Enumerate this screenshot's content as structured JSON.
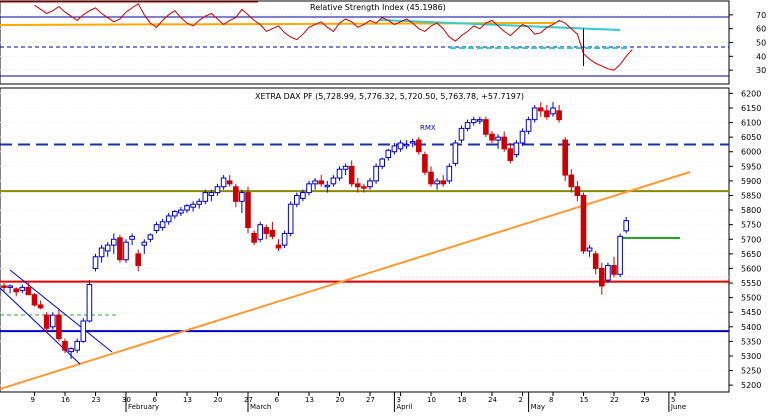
{
  "rsi_panel": {
    "title": "Relative Strength Index (45.1986)",
    "y_ticks": [
      30,
      40,
      50,
      60,
      70
    ],
    "y_range": [
      20,
      80
    ],
    "dashed_levels": [
      50
    ],
    "solid_levels": [
      70,
      30
    ],
    "line_color": "#cc0000",
    "series_days": [
      5,
      6,
      7,
      8,
      9,
      10,
      11,
      12,
      13,
      14,
      15,
      16,
      17,
      18,
      19,
      20,
      21,
      22,
      23,
      24,
      25,
      26,
      27,
      28,
      29,
      30,
      31,
      32,
      33,
      34,
      35,
      36,
      37,
      38,
      39,
      40,
      41,
      42,
      43,
      44,
      45,
      46,
      47,
      48,
      49,
      50,
      51,
      52,
      53,
      54,
      55,
      56,
      57,
      58,
      59,
      60,
      61,
      62,
      63,
      64,
      65,
      66,
      67,
      68,
      69,
      70,
      71,
      72,
      73,
      74,
      75,
      76,
      77,
      78,
      79,
      80,
      81,
      82,
      83,
      84,
      85,
      86,
      87,
      88,
      89,
      90,
      91,
      92,
      93,
      94,
      95,
      96,
      97,
      98,
      99,
      100,
      101,
      102,
      103
    ],
    "series_values": [
      77,
      74,
      71,
      73,
      76,
      72,
      69,
      66,
      70,
      73,
      75,
      71,
      68,
      65,
      67,
      72,
      75,
      78,
      70,
      64,
      61,
      66,
      70,
      73,
      68,
      64,
      62,
      66,
      69,
      71,
      67,
      63,
      66,
      68,
      74,
      70,
      66,
      63,
      58,
      60,
      62,
      57,
      54,
      52,
      56,
      61,
      63,
      65,
      61,
      58,
      64,
      67,
      65,
      61,
      63,
      66,
      64,
      68,
      66,
      63,
      65,
      67,
      64,
      60,
      58,
      62,
      64,
      60,
      54,
      51,
      55,
      58,
      62,
      60,
      64,
      66,
      62,
      58,
      55,
      59,
      63,
      61,
      56,
      57,
      61,
      63,
      66,
      64,
      60,
      56,
      42,
      38,
      35,
      33,
      31,
      30,
      34,
      40,
      45
    ]
  },
  "price_panel": {
    "title": "XETRA DAX PF (5,728.99, 5,776.32, 5,720.50, 5,763.78, +57.7197)",
    "annotation": "RMX",
    "y_ticks": [
      5200,
      5250,
      5300,
      5350,
      5400,
      5450,
      5500,
      5550,
      5600,
      5650,
      5700,
      5750,
      5800,
      5850,
      5900,
      5950,
      6000,
      6050,
      6100,
      6150,
      6200
    ],
    "y_range": [
      5180,
      6215
    ],
    "bull_color": "#0000cc",
    "bear_color": "#cc0000",
    "horizontal_lines": [
      {
        "value": 6025,
        "style": "dashed",
        "color": "#1a2fa8"
      },
      {
        "value": 5865,
        "style": "solid",
        "color": "#8a8a00"
      },
      {
        "value": 5555,
        "style": "solid",
        "color": "#dd0000"
      },
      {
        "value": 5385,
        "style": "solid",
        "color": "#0000cc"
      }
    ]
  },
  "x_axis": {
    "tick_labels": [
      "9",
      "16",
      "23",
      "30",
      "6",
      "13",
      "20",
      "27",
      "6",
      "13",
      "20",
      "27",
      "3",
      "10",
      "18",
      "24",
      "2",
      "8",
      "15",
      "22",
      "29",
      "5"
    ],
    "tick_days": [
      5,
      10,
      15,
      20,
      25,
      30,
      35,
      40,
      45,
      50,
      55,
      60,
      65,
      70,
      75,
      80,
      85,
      90,
      95,
      100,
      105,
      110
    ],
    "month_labels": [
      "February",
      "March",
      "April",
      "May",
      "June"
    ],
    "month_days": [
      20,
      40,
      64,
      86,
      109
    ]
  },
  "chart_data": [
    {
      "type": "line",
      "title": "Relative Strength Index (45.1986)",
      "series": [
        {
          "name": "Relative Strength Index",
          "x_day_index": "see rsi_panel.series_days",
          "values": "see rsi_panel.series_values"
        }
      ],
      "ylim": [
        20,
        80
      ],
      "reference_levels": [
        30,
        50,
        70
      ]
    },
    {
      "type": "candlestick",
      "title": "XETRA DAX PF (5,728.99, 5,776.32, 5,720.50, 5,763.78, +57.7197)",
      "last_bar": {
        "open": 5728.99,
        "high": 5776.32,
        "low": 5720.5,
        "close": 5763.78,
        "change": 57.7197
      },
      "ylim": [
        5180,
        6215
      ],
      "candles": [
        [
          5540,
          5550,
          5520,
          5535
        ],
        [
          5535,
          5545,
          5515,
          5540
        ],
        [
          5530,
          5535,
          5505,
          5520
        ],
        [
          5525,
          5545,
          5515,
          5535
        ],
        [
          5535,
          5550,
          5520,
          5510
        ],
        [
          5510,
          5515,
          5470,
          5475
        ],
        [
          5475,
          5490,
          5460,
          5465
        ],
        [
          5440,
          5450,
          5380,
          5395
        ],
        [
          5400,
          5450,
          5390,
          5440
        ],
        [
          5440,
          5460,
          5350,
          5360
        ],
        [
          5350,
          5360,
          5310,
          5320
        ],
        [
          5315,
          5330,
          5290,
          5325
        ],
        [
          5320,
          5360,
          5310,
          5350
        ],
        [
          5350,
          5430,
          5345,
          5420
        ],
        [
          5420,
          5560,
          5415,
          5545
        ],
        [
          5600,
          5650,
          5590,
          5640
        ],
        [
          5640,
          5680,
          5620,
          5670
        ],
        [
          5660,
          5690,
          5640,
          5680
        ],
        [
          5680,
          5720,
          5650,
          5700
        ],
        [
          5705,
          5715,
          5620,
          5630
        ],
        [
          5630,
          5700,
          5620,
          5690
        ],
        [
          5700,
          5720,
          5680,
          5710
        ],
        [
          5650,
          5665,
          5590,
          5610
        ],
        [
          5680,
          5700,
          5650,
          5690
        ],
        [
          5700,
          5720,
          5690,
          5715
        ],
        [
          5730,
          5760,
          5720,
          5750
        ],
        [
          5740,
          5770,
          5730,
          5760
        ],
        [
          5760,
          5790,
          5750,
          5780
        ],
        [
          5780,
          5800,
          5770,
          5795
        ],
        [
          5790,
          5810,
          5780,
          5800
        ],
        [
          5800,
          5820,
          5790,
          5815
        ],
        [
          5810,
          5830,
          5795,
          5820
        ],
        [
          5820,
          5840,
          5805,
          5830
        ],
        [
          5830,
          5870,
          5820,
          5860
        ],
        [
          5850,
          5870,
          5830,
          5860
        ],
        [
          5860,
          5890,
          5850,
          5880
        ],
        [
          5880,
          5920,
          5870,
          5910
        ],
        [
          5900,
          5920,
          5880,
          5890
        ],
        [
          5880,
          5890,
          5810,
          5830
        ],
        [
          5830,
          5870,
          5790,
          5860
        ],
        [
          5860,
          5880,
          5720,
          5740
        ],
        [
          5720,
          5730,
          5680,
          5690
        ],
        [
          5700,
          5760,
          5690,
          5750
        ],
        [
          5740,
          5750,
          5700,
          5720
        ],
        [
          5730,
          5760,
          5700,
          5710
        ],
        [
          5680,
          5700,
          5660,
          5670
        ],
        [
          5680,
          5730,
          5670,
          5720
        ],
        [
          5720,
          5830,
          5710,
          5820
        ],
        [
          5820,
          5860,
          5810,
          5850
        ],
        [
          5840,
          5870,
          5830,
          5860
        ],
        [
          5860,
          5900,
          5850,
          5890
        ],
        [
          5890,
          5910,
          5870,
          5900
        ],
        [
          5900,
          5920,
          5880,
          5890
        ],
        [
          5880,
          5900,
          5860,
          5885
        ],
        [
          5890,
          5920,
          5880,
          5910
        ],
        [
          5910,
          5950,
          5900,
          5940
        ],
        [
          5940,
          5960,
          5920,
          5950
        ],
        [
          5950,
          5970,
          5880,
          5890
        ],
        [
          5890,
          5910,
          5860,
          5880
        ],
        [
          5880,
          5890,
          5860,
          5875
        ],
        [
          5880,
          5910,
          5870,
          5900
        ],
        [
          5900,
          5960,
          5890,
          5950
        ],
        [
          5950,
          5980,
          5940,
          5975
        ],
        [
          5980,
          6010,
          5970,
          6005
        ],
        [
          6000,
          6030,
          5990,
          6020
        ],
        [
          6010,
          6040,
          6000,
          6030
        ],
        [
          6020,
          6040,
          6010,
          6025
        ],
        [
          6030,
          6045,
          6015,
          6035
        ],
        [
          6040,
          6050,
          5990,
          6000
        ],
        [
          5990,
          6000,
          5920,
          5930
        ],
        [
          5930,
          5950,
          5880,
          5890
        ],
        [
          5890,
          5910,
          5870,
          5900
        ],
        [
          5900,
          5920,
          5880,
          5890
        ],
        [
          5900,
          5960,
          5890,
          5950
        ],
        [
          5960,
          6040,
          5950,
          6030
        ],
        [
          6040,
          6090,
          6030,
          6080
        ],
        [
          6080,
          6110,
          6070,
          6100
        ],
        [
          6100,
          6120,
          6090,
          6110
        ],
        [
          6105,
          6120,
          6095,
          6110
        ],
        [
          6110,
          6120,
          6050,
          6060
        ],
        [
          6060,
          6070,
          6030,
          6040
        ],
        [
          6040,
          6060,
          6010,
          6050
        ],
        [
          6050,
          6070,
          6000,
          6010
        ],
        [
          6010,
          6030,
          5960,
          5970
        ],
        [
          5990,
          6040,
          5980,
          6030
        ],
        [
          6030,
          6080,
          6020,
          6070
        ],
        [
          6070,
          6120,
          6060,
          6110
        ],
        [
          6110,
          6160,
          6100,
          6150
        ],
        [
          6150,
          6170,
          6120,
          6140
        ],
        [
          6140,
          6160,
          6110,
          6120
        ],
        [
          6130,
          6170,
          6120,
          6150
        ],
        [
          6140,
          6160,
          6100,
          6110
        ],
        [
          6040,
          6050,
          5900,
          5920
        ],
        [
          5920,
          5940,
          5860,
          5880
        ],
        [
          5880,
          5900,
          5830,
          5850
        ],
        [
          5850,
          5860,
          5650,
          5660
        ],
        [
          5660,
          5680,
          5640,
          5670
        ],
        [
          5650,
          5660,
          5580,
          5600
        ],
        [
          5600,
          5620,
          5510,
          5540
        ],
        [
          5560,
          5620,
          5550,
          5610
        ],
        [
          5610,
          5640,
          5570,
          5580
        ],
        [
          5580,
          5720,
          5570,
          5710
        ],
        [
          5728.99,
          5776.32,
          5720.5,
          5763.78
        ]
      ],
      "annotations": [
        "RMX"
      ]
    }
  ]
}
